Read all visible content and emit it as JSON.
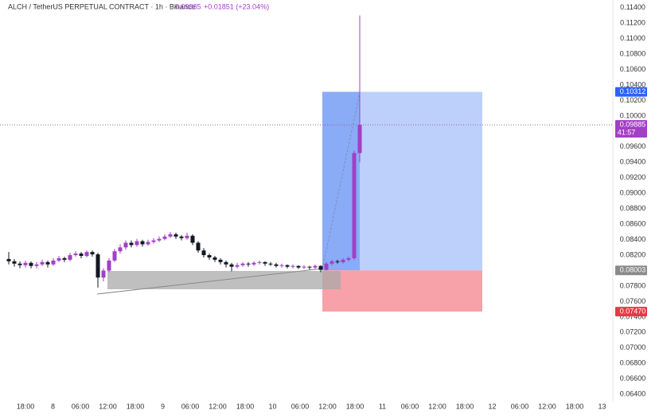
{
  "chart_data": {
    "type": "candlestick",
    "title": "ALCH / TetherUS PERPETUAL CONTRACT · 1h · Binance",
    "last": 0.09885,
    "change": "+0.01851 (+23.04%)",
    "countdown": "41:57",
    "up_color": "#a23fc6",
    "down_color": "#131722",
    "ylim": [
      0.0634,
      0.115
    ],
    "yticks": [
      {
        "value": 0.114,
        "label": "0.11400"
      },
      {
        "value": 0.112,
        "label": "0.11200"
      },
      {
        "value": 0.11,
        "label": "0.11000"
      },
      {
        "value": 0.108,
        "label": "0.10800"
      },
      {
        "value": 0.106,
        "label": "0.10600"
      },
      {
        "value": 0.104,
        "label": "0.10400"
      },
      {
        "value": 0.102,
        "label": "0.10200"
      },
      {
        "value": 0.1,
        "label": "0.10000"
      },
      {
        "value": 0.096,
        "label": "0.09600"
      },
      {
        "value": 0.094,
        "label": "0.09400"
      },
      {
        "value": 0.092,
        "label": "0.09200"
      },
      {
        "value": 0.09,
        "label": "0.09000"
      },
      {
        "value": 0.088,
        "label": "0.08800"
      },
      {
        "value": 0.086,
        "label": "0.08600"
      },
      {
        "value": 0.084,
        "label": "0.08400"
      },
      {
        "value": 0.082,
        "label": "0.08200"
      },
      {
        "value": 0.078,
        "label": "0.07800"
      },
      {
        "value": 0.076,
        "label": "0.07600"
      },
      {
        "value": 0.074,
        "label": "0.07400"
      },
      {
        "value": 0.072,
        "label": "0.07200"
      },
      {
        "value": 0.07,
        "label": "0.07000"
      },
      {
        "value": 0.068,
        "label": "0.06800"
      },
      {
        "value": 0.066,
        "label": "0.06600"
      },
      {
        "value": 0.064,
        "label": "0.06400"
      }
    ],
    "x_labels": [
      "18:00",
      "8",
      "06:00",
      "12:00",
      "18:00",
      "9",
      "06:00",
      "12:00",
      "18:00",
      "10",
      "06:00",
      "12:00",
      "18:00",
      "11",
      "06:00",
      "12:00",
      "18:00",
      "12",
      "06:00",
      "12:00",
      "18:00",
      "13"
    ],
    "position": {
      "target": 0.10312,
      "entry": 0.08003,
      "stop": {
        "value": 0.0747,
        "label": "0.07470"
      }
    },
    "ohlc": [
      [
        0.0815,
        0.0824,
        0.0808,
        0.0812
      ],
      [
        0.0812,
        0.0815,
        0.0805,
        0.0809
      ],
      [
        0.0809,
        0.0812,
        0.0803,
        0.0807
      ],
      [
        0.0807,
        0.0813,
        0.0804,
        0.081
      ],
      [
        0.081,
        0.0812,
        0.0803,
        0.0806
      ],
      [
        0.0806,
        0.0811,
        0.0803,
        0.0808
      ],
      [
        0.0808,
        0.0814,
        0.0806,
        0.0811
      ],
      [
        0.0811,
        0.0813,
        0.0804,
        0.0808
      ],
      [
        0.0808,
        0.0816,
        0.0806,
        0.0813
      ],
      [
        0.0813,
        0.0819,
        0.0811,
        0.0816
      ],
      [
        0.0816,
        0.0818,
        0.0811,
        0.0814
      ],
      [
        0.0814,
        0.0823,
        0.0812,
        0.082
      ],
      [
        0.082,
        0.0825,
        0.0818,
        0.0822
      ],
      [
        0.0822,
        0.0824,
        0.0816,
        0.0819
      ],
      [
        0.0819,
        0.0826,
        0.0817,
        0.0824
      ],
      [
        0.0824,
        0.0826,
        0.0818,
        0.0821
      ],
      [
        0.0821,
        0.0823,
        0.0778,
        0.0791
      ],
      [
        0.0791,
        0.0803,
        0.0786,
        0.08
      ],
      [
        0.08,
        0.0816,
        0.0798,
        0.0813
      ],
      [
        0.0813,
        0.0828,
        0.0811,
        0.0825
      ],
      [
        0.0825,
        0.0834,
        0.0822,
        0.083
      ],
      [
        0.083,
        0.0839,
        0.0827,
        0.0836
      ],
      [
        0.0836,
        0.0839,
        0.083,
        0.0833
      ],
      [
        0.0833,
        0.0841,
        0.0831,
        0.0838
      ],
      [
        0.0838,
        0.084,
        0.0831,
        0.0834
      ],
      [
        0.0834,
        0.084,
        0.0832,
        0.0837
      ],
      [
        0.0837,
        0.0842,
        0.0835,
        0.0839
      ],
      [
        0.0839,
        0.0844,
        0.0837,
        0.0841
      ],
      [
        0.0841,
        0.0847,
        0.0839,
        0.0844
      ],
      [
        0.0844,
        0.085,
        0.0842,
        0.0847
      ],
      [
        0.0847,
        0.0849,
        0.0841,
        0.0844
      ],
      [
        0.0844,
        0.0846,
        0.0839,
        0.0842
      ],
      [
        0.0842,
        0.0849,
        0.084,
        0.0845
      ],
      [
        0.0845,
        0.0847,
        0.0833,
        0.0836
      ],
      [
        0.0836,
        0.0838,
        0.0823,
        0.0826
      ],
      [
        0.0826,
        0.0829,
        0.0817,
        0.082
      ],
      [
        0.082,
        0.0822,
        0.0814,
        0.0817
      ],
      [
        0.0817,
        0.0819,
        0.0811,
        0.0814
      ],
      [
        0.0814,
        0.0816,
        0.0808,
        0.0811
      ],
      [
        0.0811,
        0.0813,
        0.0804,
        0.0808
      ],
      [
        0.0808,
        0.081,
        0.0799,
        0.0805
      ],
      [
        0.0805,
        0.081,
        0.0803,
        0.0807
      ],
      [
        0.0807,
        0.0811,
        0.0805,
        0.0809
      ],
      [
        0.0809,
        0.0811,
        0.0805,
        0.0808
      ],
      [
        0.0808,
        0.0812,
        0.0806,
        0.081
      ],
      [
        0.081,
        0.0813,
        0.0808,
        0.0811
      ],
      [
        0.0811,
        0.0812,
        0.0806,
        0.0809
      ],
      [
        0.0809,
        0.0811,
        0.0806,
        0.0808
      ],
      [
        0.0808,
        0.081,
        0.0804,
        0.0806
      ],
      [
        0.0806,
        0.0809,
        0.0804,
        0.0807
      ],
      [
        0.0807,
        0.0808,
        0.0803,
        0.0805
      ],
      [
        0.0805,
        0.0808,
        0.0803,
        0.0806
      ],
      [
        0.0806,
        0.0807,
        0.0802,
        0.0804
      ],
      [
        0.0804,
        0.0807,
        0.0802,
        0.0805
      ],
      [
        0.0805,
        0.0806,
        0.0801,
        0.0804
      ],
      [
        0.0804,
        0.0808,
        0.0802,
        0.0806
      ],
      [
        0.0806,
        0.0807,
        0.0798,
        0.0801
      ],
      [
        0.0801,
        0.0811,
        0.08,
        0.0809
      ],
      [
        0.0809,
        0.0814,
        0.0807,
        0.0812
      ],
      [
        0.0812,
        0.0814,
        0.0809,
        0.0811
      ],
      [
        0.0811,
        0.0816,
        0.0809,
        0.0814
      ],
      [
        0.0814,
        0.0818,
        0.0812,
        0.0816
      ],
      [
        0.0816,
        0.0955,
        0.0814,
        0.0952
      ],
      [
        0.0952,
        0.113,
        0.094,
        0.09885
      ]
    ]
  }
}
